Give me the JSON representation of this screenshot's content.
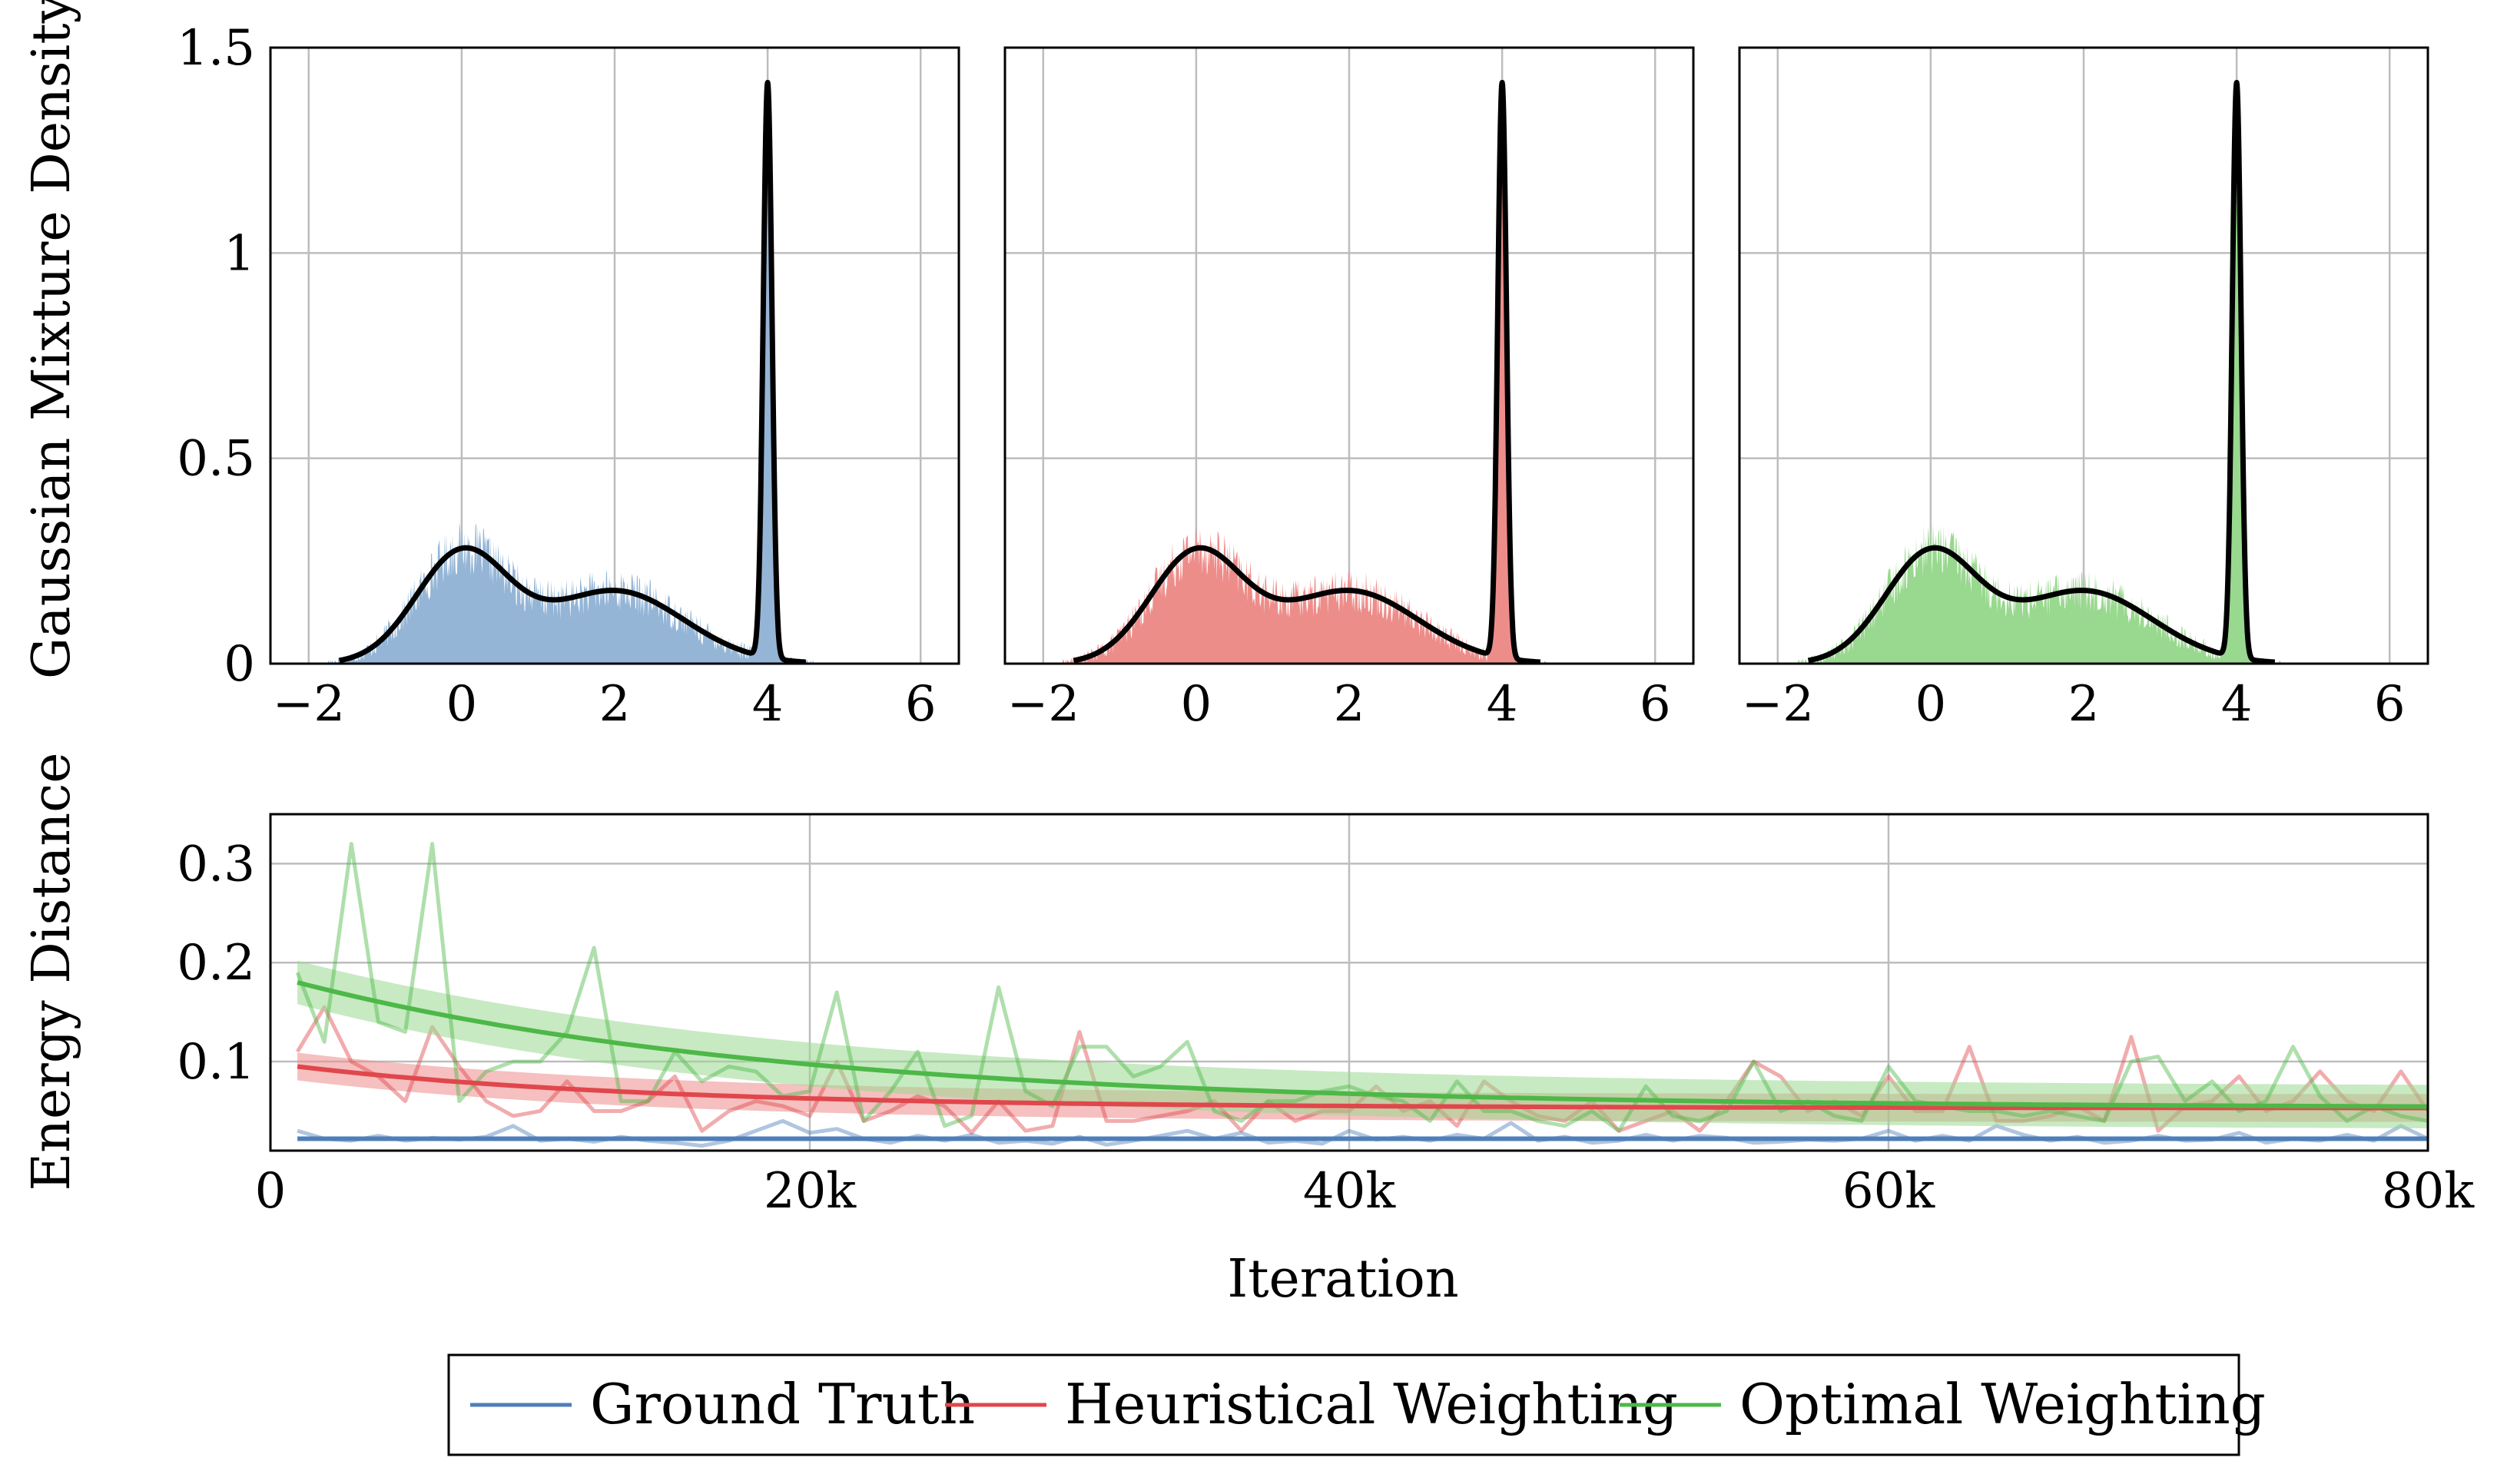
{
  "colors": {
    "ground_truth": "#4f7fb8",
    "heuristical": "#e0474c",
    "optimal": "#4db848",
    "fill_blue": "#94b5d6",
    "fill_red": "#ed8d8a",
    "fill_green": "#99d88f",
    "grid": "#bdbdbd",
    "density_line": "#000000"
  },
  "legend": {
    "ground_truth": "Ground Truth",
    "heuristical": "Heuristical Weighting",
    "optimal": "Optimal Weighting"
  },
  "chart_data": [
    {
      "type": "area",
      "panel": "top-left",
      "series_key": "ground_truth",
      "ylabel": "Gaussian Mixture Density",
      "xlim": [
        -2.5,
        6.5
      ],
      "ylim": [
        0,
        1.5
      ],
      "xticks": [
        -2,
        0,
        2,
        4,
        6
      ],
      "yticks": [
        0,
        0.5,
        1,
        1.5
      ],
      "xticklabels": [
        "−2",
        "0",
        "2",
        "4",
        "6"
      ],
      "yticklabels": [
        "0",
        "0.5",
        "1",
        "1.5"
      ],
      "grid": true,
      "mixture": [
        {
          "weight": 0.4,
          "mean": 0,
          "sd": 0.6
        },
        {
          "weight": 0.4,
          "mean": 2,
          "sd": 0.9
        },
        {
          "weight": 0.2,
          "mean": 4,
          "sd": 0.057
        }
      ],
      "histogram_peak_scale": 1.0
    },
    {
      "type": "area",
      "panel": "top-middle",
      "series_key": "heuristical",
      "xlim": [
        -2.5,
        6.5
      ],
      "ylim": [
        0,
        1.5
      ],
      "xticks": [
        -2,
        0,
        2,
        4,
        6
      ],
      "xticklabels": [
        "−2",
        "0",
        "2",
        "4",
        "6"
      ],
      "grid": true,
      "mixture": [
        {
          "weight": 0.4,
          "mean": 0,
          "sd": 0.6
        },
        {
          "weight": 0.4,
          "mean": 2,
          "sd": 0.9
        },
        {
          "weight": 0.2,
          "mean": 4,
          "sd": 0.057
        }
      ],
      "histogram_peak_scale": 0.88
    },
    {
      "type": "area",
      "panel": "top-right",
      "series_key": "optimal",
      "xlim": [
        -2.5,
        6.5
      ],
      "ylim": [
        0,
        1.5
      ],
      "xticks": [
        -2,
        0,
        2,
        4,
        6
      ],
      "xticklabels": [
        "−2",
        "0",
        "2",
        "4",
        "6"
      ],
      "grid": true,
      "mixture": [
        {
          "weight": 0.4,
          "mean": 0,
          "sd": 0.6
        },
        {
          "weight": 0.4,
          "mean": 2,
          "sd": 0.9
        },
        {
          "weight": 0.2,
          "mean": 4,
          "sd": 0.057
        }
      ],
      "histogram_peak_scale": 0.82
    },
    {
      "type": "line",
      "panel": "bottom",
      "xlabel": "Iteration",
      "ylabel": "Energy Distance",
      "xlim": [
        0,
        80000
      ],
      "ylim": [
        0.01,
        0.35
      ],
      "xticks": [
        0,
        20000,
        40000,
        60000,
        80000
      ],
      "xticklabels": [
        "0",
        "20k",
        "40k",
        "60k",
        "80k"
      ],
      "yticks": [
        0.1,
        0.2,
        0.3
      ],
      "yticklabels": [
        "0.1",
        "0.2",
        "0.3"
      ],
      "grid": true,
      "x": [
        1000,
        2000,
        3000,
        4000,
        5000,
        6000,
        7000,
        8000,
        9000,
        10000,
        11000,
        12000,
        13000,
        14000,
        15000,
        16000,
        17000,
        18000,
        19000,
        20000,
        21000,
        22000,
        23000,
        24000,
        25000,
        26000,
        27000,
        28000,
        29000,
        30000,
        31000,
        32000,
        33000,
        34000,
        35000,
        36000,
        37000,
        38000,
        39000,
        40000,
        41000,
        42000,
        43000,
        44000,
        45000,
        46000,
        47000,
        48000,
        49000,
        50000,
        51000,
        52000,
        53000,
        54000,
        55000,
        56000,
        57000,
        58000,
        59000,
        60000,
        61000,
        62000,
        63000,
        64000,
        65000,
        66000,
        67000,
        68000,
        69000,
        70000,
        71000,
        72000,
        73000,
        74000,
        75000,
        76000,
        77000,
        78000,
        79000,
        80000
      ],
      "series": [
        {
          "name": "Ground Truth",
          "key": "ground_truth",
          "raw": [
            0.03,
            0.022,
            0.02,
            0.025,
            0.02,
            0.023,
            0.021,
            0.024,
            0.035,
            0.02,
            0.022,
            0.019,
            0.024,
            0.02,
            0.018,
            0.015,
            0.02,
            0.03,
            0.04,
            0.028,
            0.032,
            0.022,
            0.018,
            0.025,
            0.02,
            0.026,
            0.018,
            0.02,
            0.017,
            0.024,
            0.016,
            0.02,
            0.025,
            0.03,
            0.022,
            0.028,
            0.018,
            0.02,
            0.017,
            0.03,
            0.021,
            0.024,
            0.02,
            0.026,
            0.022,
            0.038,
            0.02,
            0.024,
            0.018,
            0.02,
            0.026,
            0.02,
            0.025,
            0.023,
            0.018,
            0.019,
            0.021,
            0.02,
            0.022,
            0.03,
            0.02,
            0.025,
            0.02,
            0.035,
            0.026,
            0.02,
            0.024,
            0.018,
            0.02,
            0.025,
            0.02,
            0.021,
            0.028,
            0.018,
            0.022,
            0.02,
            0.026,
            0.02,
            0.035,
            0.022
          ],
          "trend_start": 0.022,
          "trend_end": 0.022,
          "trend_decay": 20000,
          "band": 0.002
        },
        {
          "name": "Heuristical Weighting",
          "key": "heuristical",
          "raw": [
            0.11,
            0.155,
            0.1,
            0.085,
            0.06,
            0.135,
            0.095,
            0.06,
            0.045,
            0.05,
            0.08,
            0.05,
            0.05,
            0.06,
            0.085,
            0.03,
            0.05,
            0.06,
            0.055,
            0.045,
            0.1,
            0.04,
            0.05,
            0.065,
            0.055,
            0.028,
            0.06,
            0.03,
            0.035,
            0.13,
            0.04,
            0.04,
            0.045,
            0.05,
            0.06,
            0.03,
            0.06,
            0.04,
            0.05,
            0.05,
            0.075,
            0.05,
            0.06,
            0.035,
            0.08,
            0.06,
            0.045,
            0.04,
            0.06,
            0.03,
            0.04,
            0.05,
            0.03,
            0.06,
            0.1,
            0.085,
            0.05,
            0.06,
            0.045,
            0.085,
            0.05,
            0.05,
            0.115,
            0.04,
            0.04,
            0.045,
            0.055,
            0.04,
            0.125,
            0.03,
            0.055,
            0.06,
            0.085,
            0.05,
            0.06,
            0.09,
            0.06,
            0.05,
            0.09,
            0.05
          ],
          "trend_start": 0.095,
          "trend_end": 0.053,
          "trend_decay": 13000,
          "band": 0.014
        },
        {
          "name": "Optimal Weighting",
          "key": "optimal",
          "raw": [
            0.19,
            0.12,
            0.32,
            0.14,
            0.13,
            0.32,
            0.06,
            0.09,
            0.1,
            0.1,
            0.13,
            0.215,
            0.06,
            0.06,
            0.11,
            0.08,
            0.095,
            0.09,
            0.065,
            0.07,
            0.17,
            0.04,
            0.07,
            0.11,
            0.035,
            0.045,
            0.175,
            0.07,
            0.055,
            0.115,
            0.115,
            0.085,
            0.095,
            0.12,
            0.05,
            0.04,
            0.06,
            0.06,
            0.07,
            0.075,
            0.065,
            0.06,
            0.04,
            0.08,
            0.05,
            0.05,
            0.04,
            0.035,
            0.05,
            0.03,
            0.075,
            0.045,
            0.04,
            0.05,
            0.1,
            0.05,
            0.06,
            0.045,
            0.04,
            0.095,
            0.06,
            0.055,
            0.05,
            0.05,
            0.045,
            0.05,
            0.045,
            0.04,
            0.1,
            0.105,
            0.06,
            0.08,
            0.05,
            0.06,
            0.115,
            0.065,
            0.04,
            0.055,
            0.045,
            0.04
          ],
          "trend_start": 0.18,
          "trend_end": 0.053,
          "trend_decay": 18000,
          "band": 0.022
        }
      ]
    }
  ]
}
